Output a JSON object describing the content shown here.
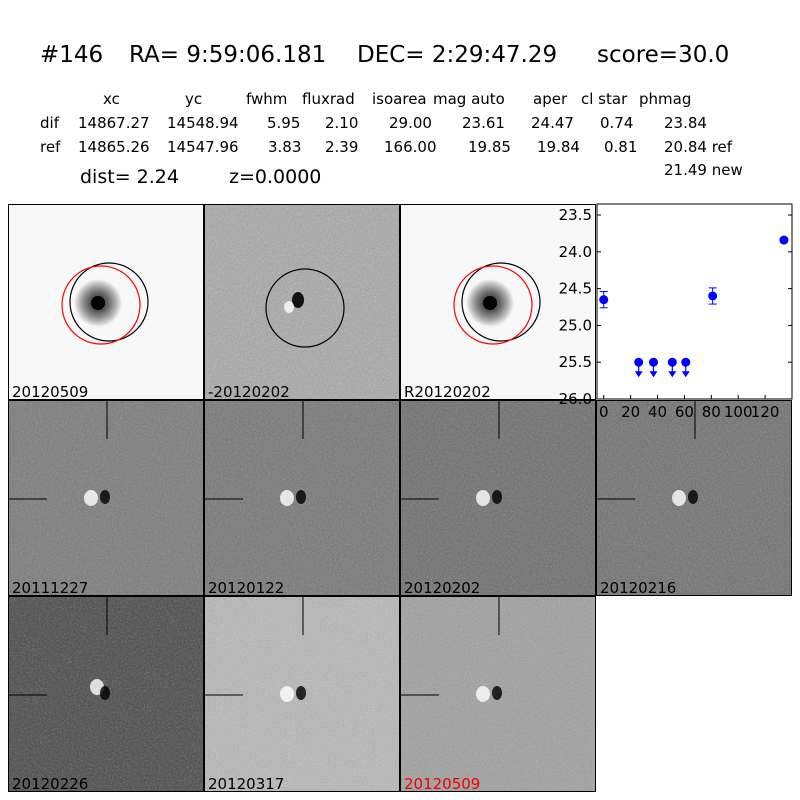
{
  "header": {
    "id": "#146",
    "ra": "RA= 9:59:06.181",
    "dec": "DEC= 2:29:47.29",
    "score": "score=30.0"
  },
  "table": {
    "columns": [
      "xc",
      "yc",
      "fwhm",
      "fluxrad",
      "isoarea",
      "mag auto",
      "aper",
      "cl star",
      "phmag"
    ],
    "rows": [
      {
        "label": "dif",
        "values": [
          "14867.27",
          "14548.94",
          "5.95",
          "2.10",
          "29.00",
          "23.61",
          "24.47",
          "0.74",
          "23.84"
        ]
      },
      {
        "label": "ref",
        "values": [
          "14865.26",
          "14547.96",
          "3.83",
          "2.39",
          "166.00",
          "19.85",
          "19.84",
          "0.81",
          "20.84 ref"
        ]
      }
    ],
    "extra": "21.49 new",
    "dist": "dist=  2.24",
    "z": "z=0.0000"
  },
  "panels": [
    {
      "label": "20120509",
      "bg": "#f8f8f8",
      "type": "ref"
    },
    {
      "label": "-20120202",
      "bg": "#a8a8a8",
      "type": "diff"
    },
    {
      "label": "R20120202",
      "bg": "#f8f8f8",
      "type": "ref"
    },
    {
      "label": "20111227",
      "bg": "#7a7a7a",
      "type": "epoch"
    },
    {
      "label": "20120122",
      "bg": "#777777",
      "type": "epoch"
    },
    {
      "label": "20120202",
      "bg": "#6e6e6e",
      "type": "epoch"
    },
    {
      "label": "20120216",
      "bg": "#707070",
      "type": "epoch"
    },
    {
      "label": "20120226",
      "bg": "#4a4a4a",
      "type": "epoch"
    },
    {
      "label": "20120317",
      "bg": "#b8b8b8",
      "type": "epoch"
    },
    {
      "label": "20120509",
      "bg": "#a0a0a0",
      "type": "epoch",
      "label_color": "#ff0000"
    }
  ],
  "chart_data": {
    "type": "scatter",
    "xlim": [
      -5,
      140
    ],
    "ylim": [
      26.0,
      23.35
    ],
    "xticks": [
      "0",
      "20",
      "40",
      "60",
      "80",
      "100",
      "120"
    ],
    "yticks": [
      "23.5",
      "24.0",
      "24.5",
      "25.0",
      "25.5",
      "26.0"
    ],
    "points": [
      {
        "x": 0,
        "y": 24.65,
        "err": 0.11,
        "upper_limit": false
      },
      {
        "x": 26,
        "y": 25.5,
        "upper_limit": true
      },
      {
        "x": 37,
        "y": 25.5,
        "upper_limit": true
      },
      {
        "x": 51,
        "y": 25.5,
        "upper_limit": true
      },
      {
        "x": 61,
        "y": 25.5,
        "upper_limit": true
      },
      {
        "x": 81,
        "y": 24.6,
        "err": 0.11,
        "upper_limit": false
      },
      {
        "x": 134,
        "y": 23.84,
        "err": 0.03,
        "upper_limit": false
      }
    ],
    "color": "#0000ff"
  }
}
